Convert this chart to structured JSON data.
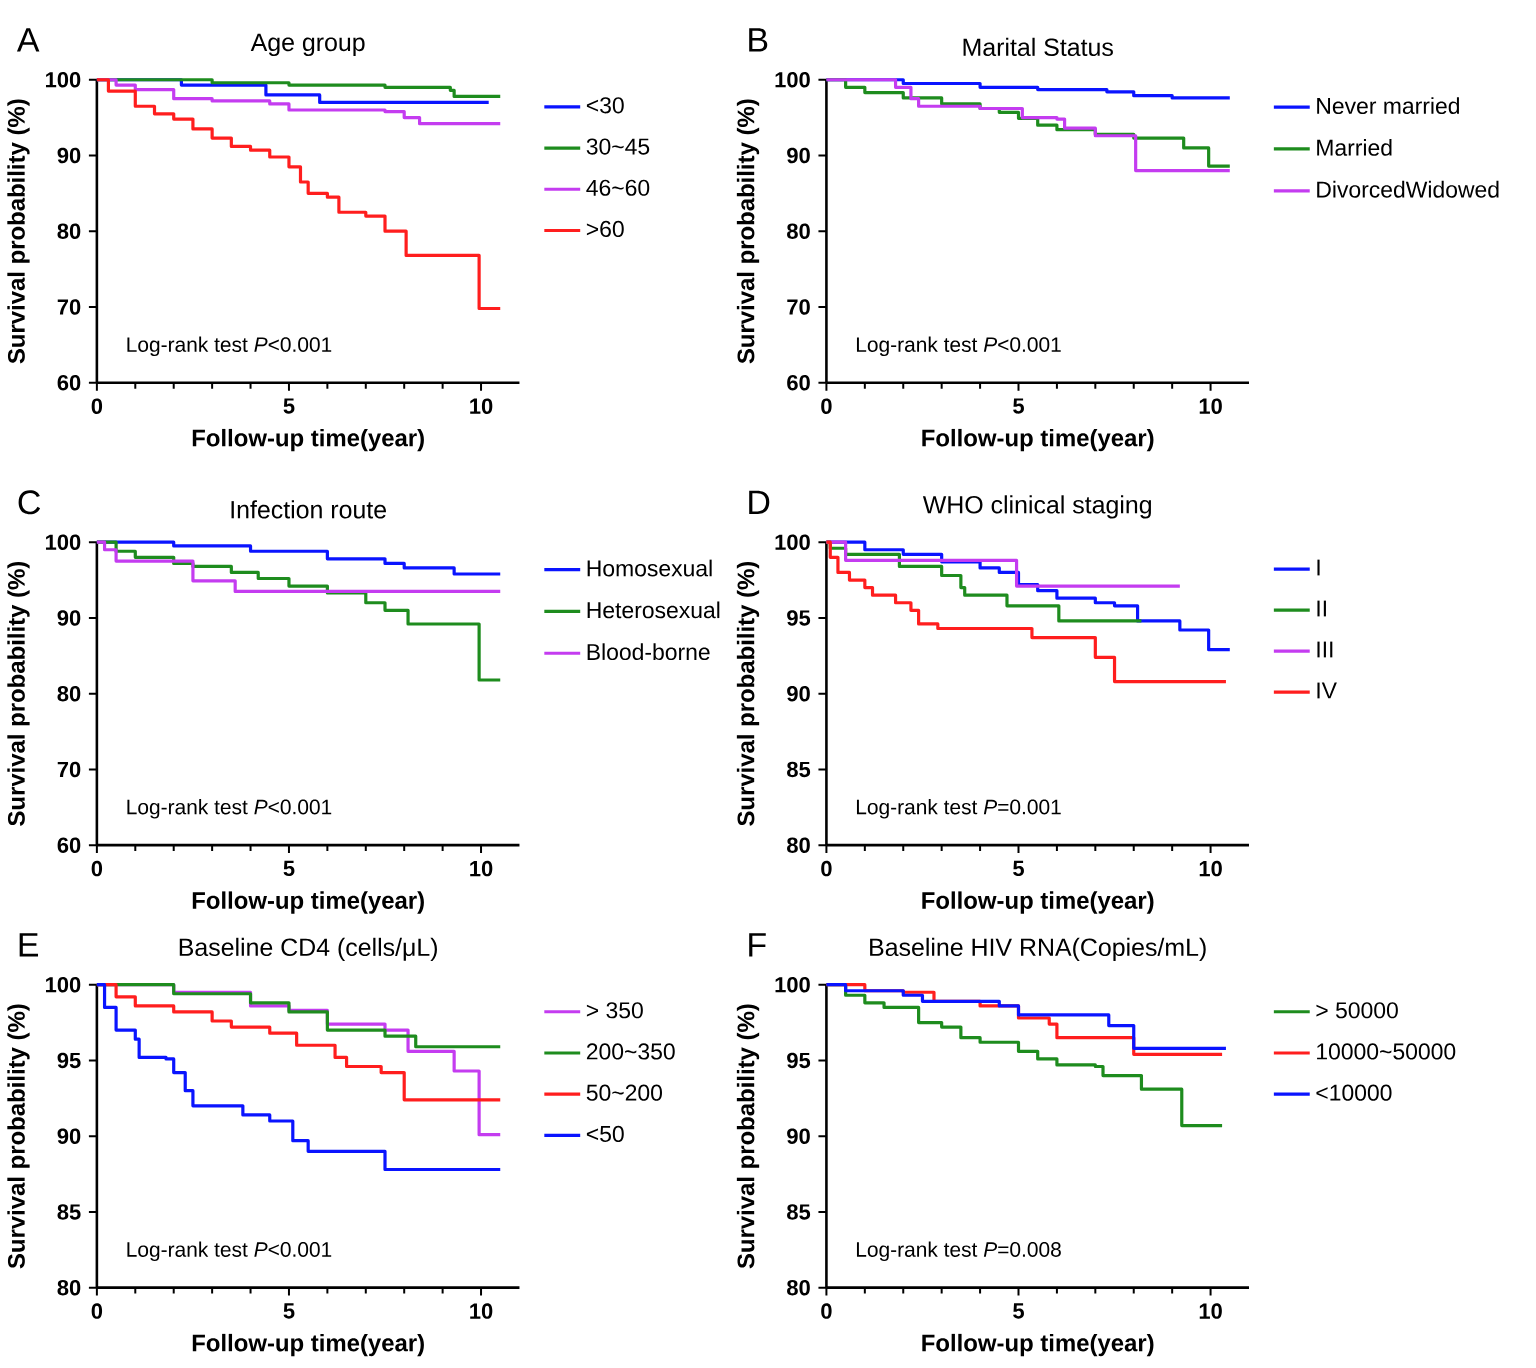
{
  "chart_data": [
    {
      "type": "step",
      "title": "Age group",
      "xlabel": "Follow-up time(year)",
      "ylabel": "Survival probability (%)",
      "xlim": [
        0,
        11
      ],
      "xticks": [
        0,
        5,
        10
      ],
      "ylim": [
        60,
        100
      ],
      "yticks": [
        60,
        70,
        80,
        90,
        100
      ],
      "legend": "right",
      "annotations": [
        "A",
        "Log-rank test *P*<0.001"
      ],
      "series": [
        {
          "name": "<30",
          "color": "#0a14ff",
          "x": [
            0,
            2.2,
            4.4,
            5.8,
            10.2
          ],
          "values": [
            100,
            99.3,
            98,
            97,
            97
          ]
        },
        {
          "name": "30~45",
          "color": "#1e8c1e",
          "x": [
            0,
            3,
            5,
            7.5,
            9.2,
            9.3,
            10.5
          ],
          "values": [
            100,
            99.6,
            99.3,
            99,
            98.6,
            97.8,
            97.8
          ]
        },
        {
          "name": "46~60",
          "color": "#c43cf0",
          "x": [
            0,
            0.5,
            1,
            2,
            3,
            4.5,
            5,
            7.5,
            8,
            8.4,
            10.5
          ],
          "values": [
            100,
            99.3,
            98.7,
            97.5,
            97.2,
            96.8,
            96,
            95.8,
            95,
            94.2,
            94.2
          ]
        },
        {
          "name": ">60",
          "color": "#ff1e1e",
          "x": [
            0,
            0.3,
            1,
            1.5,
            2,
            2.5,
            3,
            3.5,
            4,
            4.5,
            5,
            5.3,
            5.5,
            6,
            6.3,
            7,
            7.5,
            8.05,
            9.95,
            10.5
          ],
          "values": [
            100,
            98.5,
            96.5,
            95.5,
            94.8,
            93.5,
            92.3,
            91.2,
            90.7,
            89.8,
            88.5,
            86.5,
            85,
            84.5,
            82.5,
            82,
            80,
            76.8,
            69.8,
            69.8
          ]
        }
      ]
    },
    {
      "type": "step",
      "title": "Marital Status",
      "xlabel": "Follow-up time(year)",
      "ylabel": "Survival probability (%)",
      "xlim": [
        0,
        11
      ],
      "xticks": [
        0,
        5,
        10
      ],
      "ylim": [
        60,
        100
      ],
      "yticks": [
        60,
        70,
        80,
        90,
        100
      ],
      "legend": "right",
      "annotations": [
        "B",
        "Log-rank test *P*<0.001"
      ],
      "series": [
        {
          "name": "Never married",
          "color": "#0a14ff",
          "x": [
            0,
            2,
            4,
            5.5,
            7.3,
            8,
            9,
            10.5
          ],
          "values": [
            100,
            99.5,
            99,
            98.7,
            98.4,
            97.9,
            97.6,
            97.6
          ]
        },
        {
          "name": "Married",
          "color": "#1e8c1e",
          "x": [
            0,
            0.5,
            1,
            2,
            3,
            4,
            4.5,
            5,
            5.5,
            6,
            7,
            8,
            9.3,
            9.95,
            10.5
          ],
          "values": [
            100,
            99,
            98.3,
            97.6,
            96.8,
            96.2,
            95.7,
            94.9,
            94,
            93.4,
            92.8,
            92.3,
            91,
            88.6,
            88.6
          ]
        },
        {
          "name": "DivorcedWidowed",
          "color": "#c43cf0",
          "x": [
            0,
            1.8,
            2.2,
            2.4,
            4,
            5.1,
            6,
            6.2,
            7,
            8.05,
            10.5
          ],
          "values": [
            100,
            99,
            97.5,
            96.5,
            96.2,
            95,
            94.8,
            93.6,
            92.6,
            88,
            88
          ]
        }
      ]
    },
    {
      "type": "step",
      "title": "Infection route",
      "xlabel": "Follow-up time(year)",
      "ylabel": "Survival probability (%)",
      "xlim": [
        0,
        11
      ],
      "xticks": [
        0,
        5,
        10
      ],
      "ylim": [
        60,
        100
      ],
      "yticks": [
        60,
        70,
        80,
        90,
        100
      ],
      "legend": "right",
      "annotations": [
        "C",
        "Log-rank test *P*<0.001"
      ],
      "series": [
        {
          "name": "Homosexual",
          "color": "#0a14ff",
          "x": [
            0,
            2,
            4,
            6,
            7.5,
            8,
            9.3,
            10.5
          ],
          "values": [
            100,
            99.5,
            98.8,
            97.8,
            97.2,
            96.6,
            95.8,
            95.8
          ]
        },
        {
          "name": "Heterosexual",
          "color": "#1e8c1e",
          "x": [
            0,
            0.5,
            1,
            2,
            2.5,
            3.5,
            4.2,
            5,
            6,
            7,
            7.5,
            8.1,
            9.95,
            10.5
          ],
          "values": [
            100,
            98.8,
            98,
            97.2,
            96.8,
            96,
            95.2,
            94.2,
            93.3,
            92,
            91,
            89.2,
            81.8,
            81.8
          ]
        },
        {
          "name": "Blood-borne",
          "color": "#c43cf0",
          "x": [
            0,
            0.2,
            0.5,
            2.5,
            3.6,
            10.5
          ],
          "values": [
            100,
            99,
            97.5,
            94.9,
            93.5,
            93.5
          ]
        }
      ]
    },
    {
      "type": "step",
      "title": "WHO clinical staging",
      "xlabel": "Follow-up time(year)",
      "ylabel": "Survival probability (%)",
      "xlim": [
        0,
        11
      ],
      "xticks": [
        0,
        5,
        10
      ],
      "ylim": [
        80,
        100
      ],
      "yticks": [
        80,
        85,
        90,
        95,
        100
      ],
      "legend": "right",
      "annotations": [
        "D",
        "Log-rank test *P*=0.001"
      ],
      "series": [
        {
          "name": "I",
          "color": "#0a14ff",
          "x": [
            0,
            1,
            2,
            3,
            4,
            4.5,
            5,
            5.5,
            6,
            7,
            7.5,
            8.1,
            9.2,
            9.95,
            10.5
          ],
          "values": [
            100,
            99.5,
            99.2,
            98.7,
            98.3,
            98,
            97.2,
            96.8,
            96.3,
            96,
            95.8,
            94.8,
            94.2,
            92.9,
            92.9
          ]
        },
        {
          "name": "II",
          "color": "#1e8c1e",
          "x": [
            0,
            0.1,
            0.5,
            1.9,
            3,
            3.5,
            3.6,
            4.7,
            6.05,
            8.2
          ],
          "values": [
            100,
            99.6,
            99.2,
            98.4,
            97.8,
            97,
            96.5,
            95.8,
            94.8,
            94.8
          ]
        },
        {
          "name": "III",
          "color": "#c43cf0",
          "x": [
            0,
            0.5,
            4.95,
            9.2
          ],
          "values": [
            100,
            98.8,
            97.1,
            97.1
          ]
        },
        {
          "name": "IV",
          "color": "#ff1e1e",
          "x": [
            0,
            0.1,
            0.3,
            0.6,
            1,
            1.2,
            1.8,
            2.2,
            2.4,
            2.9,
            5.35,
            7,
            7.5,
            10.4
          ],
          "values": [
            100,
            99,
            98,
            97.5,
            97,
            96.5,
            96,
            95.5,
            94.6,
            94.3,
            93.7,
            92.4,
            90.8,
            90.8
          ]
        }
      ]
    },
    {
      "type": "step",
      "title": "Baseline CD4 (cells/μL)",
      "xlabel": "Follow-up time(year)",
      "ylabel": "Survival probability (%)",
      "xlim": [
        0,
        11
      ],
      "xticks": [
        0,
        5,
        10
      ],
      "ylim": [
        80,
        100
      ],
      "yticks": [
        80,
        85,
        90,
        95,
        100
      ],
      "legend": "right",
      "annotations": [
        "E",
        "Log-rank test *P*<0.001"
      ],
      "series": [
        {
          "name": "> 350",
          "color": "#c43cf0",
          "x": [
            0,
            2,
            4,
            5,
            6,
            7.5,
            8.1,
            9.3,
            9.95,
            10.5
          ],
          "values": [
            100,
            99.5,
            98.6,
            98.3,
            97.4,
            97,
            95.6,
            94.3,
            90.1,
            90.1
          ]
        },
        {
          "name": "200~350",
          "color": "#1e8c1e",
          "x": [
            0,
            2,
            4,
            5,
            6,
            7.5,
            8.3,
            10.5
          ],
          "values": [
            100,
            99.4,
            98.8,
            98.2,
            97,
            96.6,
            95.9,
            95.9
          ]
        },
        {
          "name": "50~200",
          "color": "#ff1e1e",
          "x": [
            0,
            0.5,
            1,
            2,
            3,
            3.5,
            4.5,
            5.2,
            6.2,
            6.5,
            7.4,
            8,
            10.5
          ],
          "values": [
            100,
            99.2,
            98.6,
            98.2,
            97.6,
            97.2,
            96.8,
            96,
            95.2,
            94.6,
            94.2,
            92.4,
            92.4
          ]
        },
        {
          "name": "<50",
          "color": "#0a14ff",
          "x": [
            0,
            0.2,
            0.5,
            1,
            1.1,
            1.8,
            2,
            2.3,
            2.5,
            3.8,
            4.5,
            5.1,
            5.5,
            7.5,
            10.5
          ],
          "values": [
            100,
            98.5,
            97,
            96.4,
            95.2,
            95.1,
            94.2,
            93,
            92,
            91.4,
            91,
            89.7,
            89,
            87.8,
            87.8
          ]
        }
      ]
    },
    {
      "type": "step",
      "title": "Baseline HIV RNA(Copies/mL)",
      "xlabel": "Follow-up time(year)",
      "ylabel": "Survival probability (%)",
      "xlim": [
        0,
        11
      ],
      "xticks": [
        0,
        5,
        10
      ],
      "ylim": [
        80,
        100
      ],
      "yticks": [
        80,
        85,
        90,
        95,
        100
      ],
      "legend": "right",
      "annotations": [
        "F",
        "Log-rank test *P*=0.008"
      ],
      "series": [
        {
          "name": "> 50000",
          "color": "#1e8c1e",
          "x": [
            0,
            0.5,
            1,
            1.5,
            2.4,
            3,
            3.5,
            4,
            5,
            5.5,
            6,
            7,
            7.2,
            8.2,
            9.25,
            10.3
          ],
          "values": [
            100,
            99.3,
            98.8,
            98.5,
            97.5,
            97.2,
            96.5,
            96.2,
            95.6,
            95.1,
            94.7,
            94.6,
            94,
            93.1,
            90.7,
            90.7
          ]
        },
        {
          "name": "10000~50000",
          "color": "#ff1e1e",
          "x": [
            0,
            1,
            2,
            2.8,
            4,
            5,
            5.8,
            6,
            8,
            10.3
          ],
          "values": [
            100,
            99.6,
            99.5,
            98.9,
            98.6,
            97.8,
            97.4,
            96.5,
            95.4,
            95.4
          ]
        },
        {
          "name": "<10000",
          "color": "#0a14ff",
          "x": [
            0,
            0.5,
            2,
            2.5,
            4.5,
            5,
            7.35,
            8,
            10.4
          ],
          "values": [
            100,
            99.6,
            99.3,
            98.9,
            98.6,
            98,
            97.3,
            95.8,
            95.8
          ]
        }
      ]
    }
  ]
}
